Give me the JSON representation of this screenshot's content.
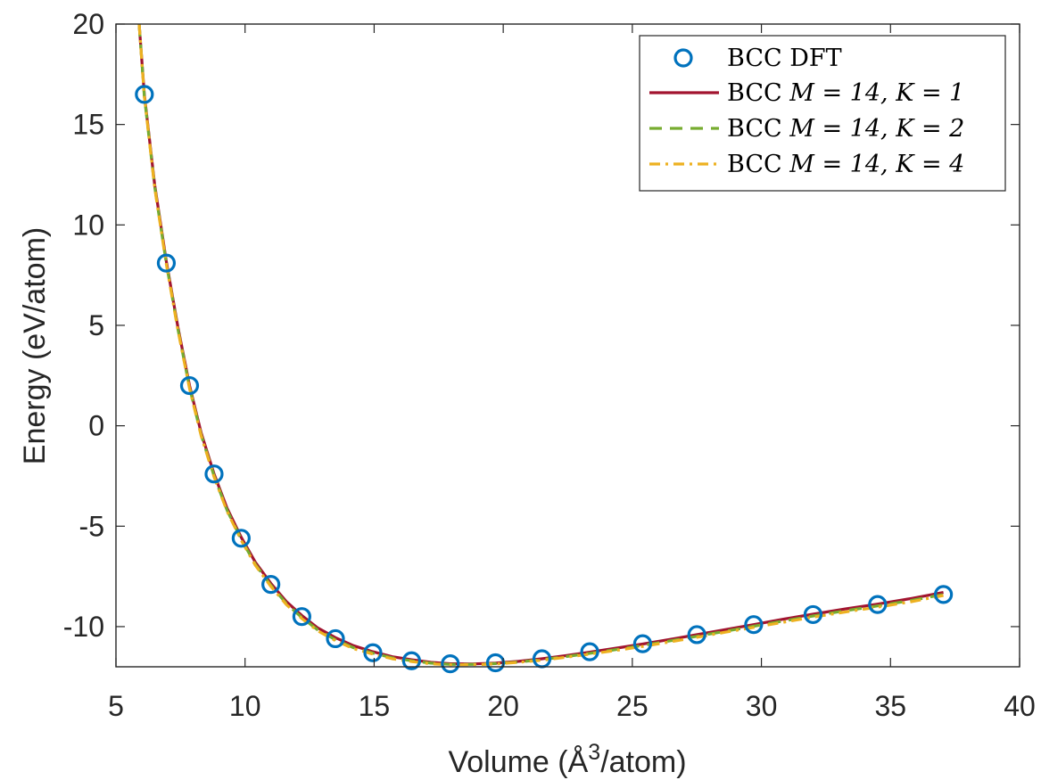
{
  "chart_data": {
    "type": "line",
    "title": "",
    "xlabel": {
      "pre": "Volume (Å",
      "sup": "3",
      "post": "/atom)"
    },
    "ylabel": "Energy (eV/atom)",
    "xlim": [
      5,
      40
    ],
    "ylim": [
      -12,
      20
    ],
    "xticks": [
      5,
      10,
      15,
      20,
      25,
      30,
      35,
      40
    ],
    "yticks": [
      -10,
      -5,
      0,
      5,
      10,
      15,
      20
    ],
    "xtick_labels": [
      "5",
      "10",
      "15",
      "20",
      "25",
      "30",
      "35",
      "40"
    ],
    "ytick_labels": [
      "-10",
      "-5",
      "0",
      "5",
      "10",
      "15",
      "20"
    ],
    "legend_position": "top-right",
    "series": [
      {
        "name": "BCC DFT",
        "legend": {
          "pre": "BCC DFT",
          "m": "",
          "post": ""
        },
        "style": "markers",
        "color": "#0072BD",
        "x": [
          6.1,
          6.95,
          7.85,
          8.8,
          9.85,
          11.0,
          12.2,
          13.5,
          14.95,
          16.45,
          17.95,
          19.7,
          21.5,
          23.35,
          25.4,
          27.5,
          29.7,
          32.0,
          34.5,
          37.05
        ],
        "y": [
          16.5,
          8.1,
          2.0,
          -2.4,
          -5.6,
          -7.9,
          -9.5,
          -10.6,
          -11.3,
          -11.7,
          -11.85,
          -11.8,
          -11.6,
          -11.25,
          -10.85,
          -10.4,
          -9.9,
          -9.4,
          -8.9,
          -8.4
        ]
      },
      {
        "name": "BCC M = 14, K = 1",
        "legend": {
          "pre": "BCC ",
          "m": "M = 14, K = 1",
          "post": ""
        },
        "style": "solid",
        "color": "#A2142F",
        "x": [
          5.9,
          6.1,
          6.5,
          6.95,
          7.4,
          7.85,
          8.3,
          8.8,
          9.3,
          9.85,
          10.4,
          11.0,
          11.6,
          12.2,
          12.8,
          13.5,
          14.2,
          14.95,
          15.7,
          16.45,
          17.2,
          17.95,
          18.8,
          19.7,
          20.6,
          21.5,
          22.4,
          23.35,
          24.4,
          25.4,
          26.4,
          27.5,
          28.6,
          29.7,
          30.85,
          32.0,
          33.25,
          34.5,
          35.8,
          37.05
        ],
        "y": [
          20.0,
          16.5,
          12.0,
          8.2,
          4.9,
          2.0,
          -0.35,
          -2.4,
          -4.1,
          -5.55,
          -6.8,
          -7.85,
          -8.75,
          -9.45,
          -10.05,
          -10.55,
          -10.95,
          -11.25,
          -11.5,
          -11.65,
          -11.78,
          -11.85,
          -11.86,
          -11.82,
          -11.73,
          -11.6,
          -11.45,
          -11.27,
          -11.07,
          -10.87,
          -10.65,
          -10.4,
          -10.15,
          -9.9,
          -9.63,
          -9.38,
          -9.12,
          -8.88,
          -8.6,
          -8.3
        ]
      },
      {
        "name": "BCC M = 14, K = 2",
        "legend": {
          "pre": "BCC ",
          "m": "M = 14, K = 2",
          "post": ""
        },
        "style": "dashed",
        "color": "#77AC30",
        "x": [
          5.9,
          6.1,
          6.5,
          6.95,
          7.4,
          7.85,
          8.3,
          8.8,
          9.3,
          9.85,
          10.4,
          11.0,
          11.6,
          12.2,
          12.8,
          13.5,
          14.2,
          14.95,
          15.7,
          16.45,
          17.2,
          17.95,
          18.8,
          19.7,
          20.6,
          21.5,
          22.4,
          23.35,
          24.4,
          25.4,
          26.4,
          27.5,
          28.6,
          29.7,
          30.85,
          32.0,
          33.25,
          34.5,
          35.8,
          37.05
        ],
        "y": [
          20.0,
          16.4,
          11.9,
          8.1,
          4.8,
          1.9,
          -0.45,
          -2.5,
          -4.2,
          -5.65,
          -6.9,
          -7.95,
          -8.85,
          -9.55,
          -10.15,
          -10.65,
          -11.05,
          -11.32,
          -11.55,
          -11.7,
          -11.82,
          -11.88,
          -11.88,
          -11.84,
          -11.76,
          -11.64,
          -11.5,
          -11.33,
          -11.14,
          -10.94,
          -10.72,
          -10.48,
          -10.23,
          -9.98,
          -9.72,
          -9.47,
          -9.21,
          -8.97,
          -8.7,
          -8.4
        ]
      },
      {
        "name": "BCC M = 14, K = 4",
        "legend": {
          "pre": "BCC ",
          "m": "M = 14, K = 4",
          "post": ""
        },
        "style": "dashdot",
        "color": "#EDB120",
        "x": [
          5.9,
          6.1,
          6.5,
          6.95,
          7.4,
          7.85,
          8.3,
          8.8,
          9.3,
          9.85,
          10.4,
          11.0,
          11.6,
          12.2,
          12.8,
          13.5,
          14.2,
          14.95,
          15.7,
          16.45,
          17.2,
          17.95,
          18.8,
          19.7,
          20.6,
          21.5,
          22.4,
          23.35,
          24.4,
          25.4,
          26.4,
          27.5,
          28.6,
          29.7,
          30.85,
          32.0,
          33.25,
          34.5,
          35.8,
          37.05
        ],
        "y": [
          20.0,
          16.4,
          11.85,
          8.05,
          4.75,
          1.85,
          -0.5,
          -2.55,
          -4.25,
          -5.7,
          -6.95,
          -8.0,
          -8.9,
          -9.6,
          -10.2,
          -10.7,
          -11.1,
          -11.37,
          -11.6,
          -11.74,
          -11.85,
          -11.9,
          -11.9,
          -11.86,
          -11.78,
          -11.67,
          -11.53,
          -11.37,
          -11.18,
          -10.99,
          -10.77,
          -10.53,
          -10.28,
          -10.04,
          -9.78,
          -9.53,
          -9.27,
          -9.03,
          -8.76,
          -8.45
        ]
      }
    ]
  }
}
